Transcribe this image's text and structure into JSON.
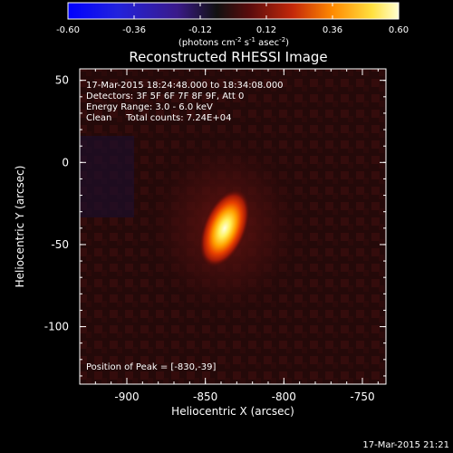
{
  "colorbar": {
    "ticks": [
      "-0.60",
      "-0.36",
      "-0.12",
      "0.12",
      "0.36",
      "0.60"
    ],
    "range": [
      -0.6,
      0.6
    ],
    "units_prefix": "(photons cm",
    "units_exp1": "-2",
    "units_mid": " s",
    "units_exp2": "-1",
    "units_mid2": " asec",
    "units_exp3": "-2",
    "units_suffix": ")"
  },
  "title": "Reconstructed RHESSI Image",
  "info": {
    "line1": "17-Mar-2015 18:24:48.000 to 18:34:08.000",
    "line2": "Detectors: 3F 5F 6F 7F 8F 9F, Att 0",
    "line3": "Energy Range: 3.0 - 6.0 keV",
    "line4": "Clean     Total counts: 7.24E+04"
  },
  "peak_text": "Position of Peak = [-830,-39]",
  "xaxis": {
    "label": "Heliocentric X (arcsec)",
    "ticks": [
      "-900",
      "-850",
      "-800",
      "-750"
    ],
    "range": [
      -930,
      -735
    ]
  },
  "yaxis": {
    "label": "Heliocentric Y (arcsec)",
    "ticks": [
      "50",
      "0",
      "-50",
      "-100"
    ],
    "range": [
      -135,
      57
    ]
  },
  "timestamp": "17-Mar-2015 21:21",
  "colors": {
    "background": "#000000",
    "axes": "#ffffff"
  }
}
